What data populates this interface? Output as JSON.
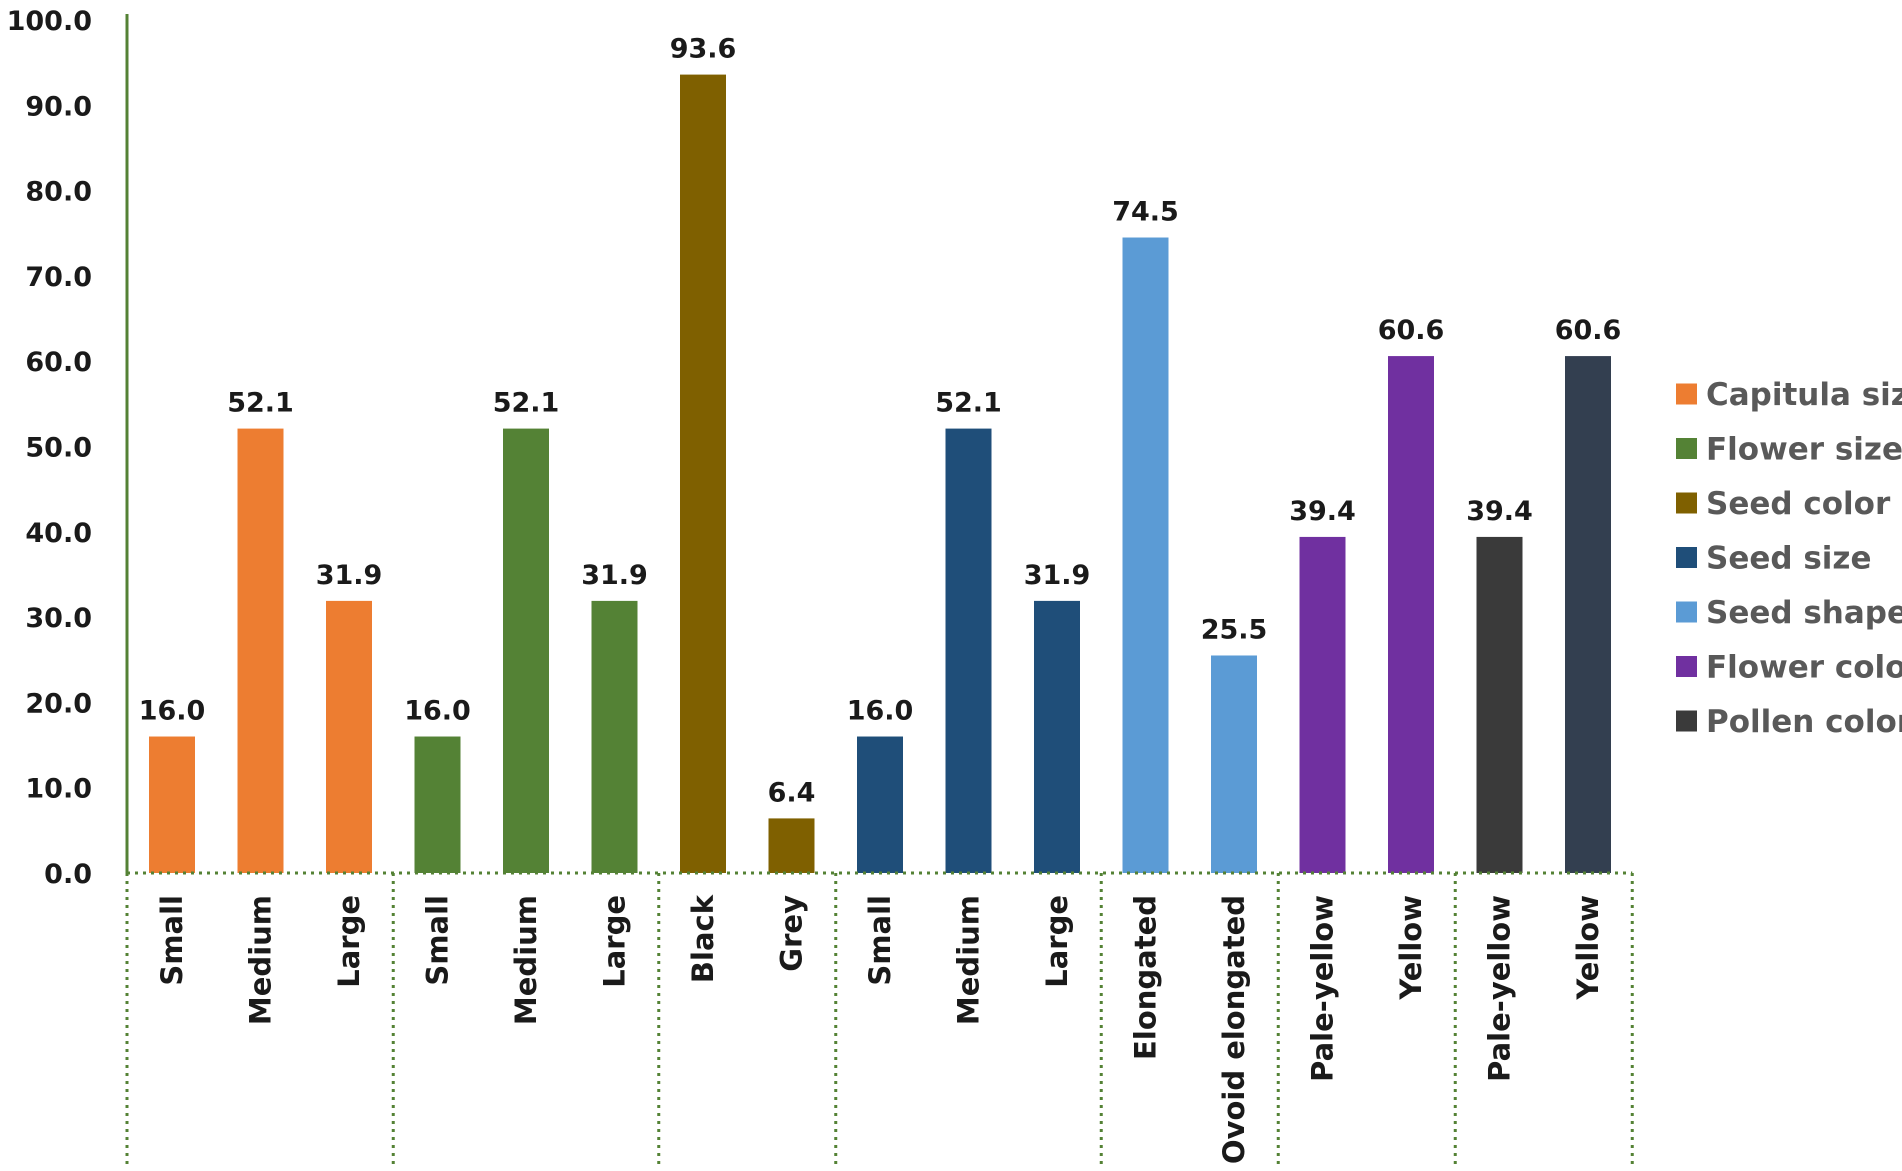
{
  "chart_data": {
    "type": "bar",
    "title": "",
    "xlabel": "",
    "ylabel": "",
    "ylim": [
      0,
      100
    ],
    "y_ticks": [
      "0.0",
      "10.0",
      "20.0",
      "30.0",
      "40.0",
      "50.0",
      "60.0",
      "70.0",
      "80.0",
      "90.0",
      "100.0"
    ],
    "grid": false,
    "legend_position": "right",
    "groups": [
      {
        "name": "Capitula size",
        "color": "#ED7D31",
        "categories": [
          "Small",
          "Medium",
          "Large"
        ],
        "values": [
          16.0,
          52.1,
          31.9
        ],
        "labels": [
          "16.0",
          "52.1",
          "31.9"
        ]
      },
      {
        "name": "Flower size",
        "color": "#548235",
        "categories": [
          "Small",
          "Medium",
          "Large"
        ],
        "values": [
          16.0,
          52.1,
          31.9
        ],
        "labels": [
          "16.0",
          "52.1",
          "31.9"
        ]
      },
      {
        "name": "Seed color",
        "color": "#7F6000",
        "categories": [
          "Black",
          "Grey"
        ],
        "values": [
          93.6,
          6.4
        ],
        "labels": [
          "93.6",
          "6.4"
        ]
      },
      {
        "name": "Seed size",
        "color": "#1F4E79",
        "categories": [
          "Small",
          "Medium",
          "Large"
        ],
        "values": [
          16.0,
          52.1,
          31.9
        ],
        "labels": [
          "16.0",
          "52.1",
          "31.9"
        ]
      },
      {
        "name": "Seed shape",
        "color": "#5B9BD5",
        "categories": [
          "Elongated",
          "Ovoid elongated"
        ],
        "values": [
          74.5,
          25.5
        ],
        "labels": [
          "74.5",
          "25.5"
        ]
      },
      {
        "name": "Flower color",
        "color": "#7030A0",
        "categories": [
          "Pale-yellow",
          "Yellow"
        ],
        "values": [
          39.4,
          60.6
        ],
        "labels": [
          "39.4",
          "60.6"
        ]
      },
      {
        "name": "Pollen color",
        "color": "#333F50",
        "categories": [
          "Pale-yellow",
          "Yellow"
        ],
        "values": [
          39.4,
          60.6
        ],
        "labels": [
          "39.4",
          "60.6"
        ],
        "bar_colors": [
          "#3A3A3A",
          "#333F50"
        ]
      }
    ]
  }
}
